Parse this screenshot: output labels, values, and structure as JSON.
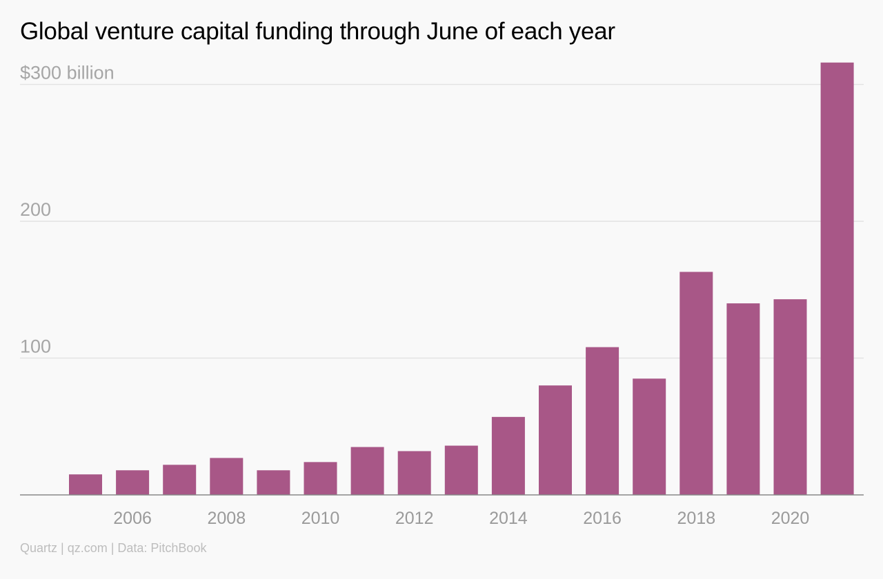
{
  "title": "Global venture capital funding through June of each year",
  "source": "Quartz | qz.com | Data: PitchBook",
  "colors": {
    "bar": "#a85787",
    "grid": "#e3e3e3",
    "axis": "#888888"
  },
  "chart_data": {
    "type": "bar",
    "title": "Global venture capital funding through June of each year",
    "categories": [
      "2005",
      "2006",
      "2007",
      "2008",
      "2009",
      "2010",
      "2011",
      "2012",
      "2013",
      "2014",
      "2015",
      "2016",
      "2017",
      "2018",
      "2019",
      "2020",
      "2021"
    ],
    "values": [
      15,
      18,
      22,
      27,
      18,
      24,
      35,
      32,
      36,
      57,
      80,
      108,
      85,
      163,
      140,
      143,
      316
    ],
    "xticks": [
      "2006",
      "2008",
      "2010",
      "2012",
      "2014",
      "2016",
      "2018",
      "2020"
    ],
    "yticks": [
      {
        "value": 100,
        "label": "100"
      },
      {
        "value": 200,
        "label": "200"
      },
      {
        "value": 300,
        "label": "$300 billion"
      }
    ],
    "ylim": [
      0,
      320
    ],
    "xlabel": "",
    "ylabel": "",
    "grid": true
  }
}
